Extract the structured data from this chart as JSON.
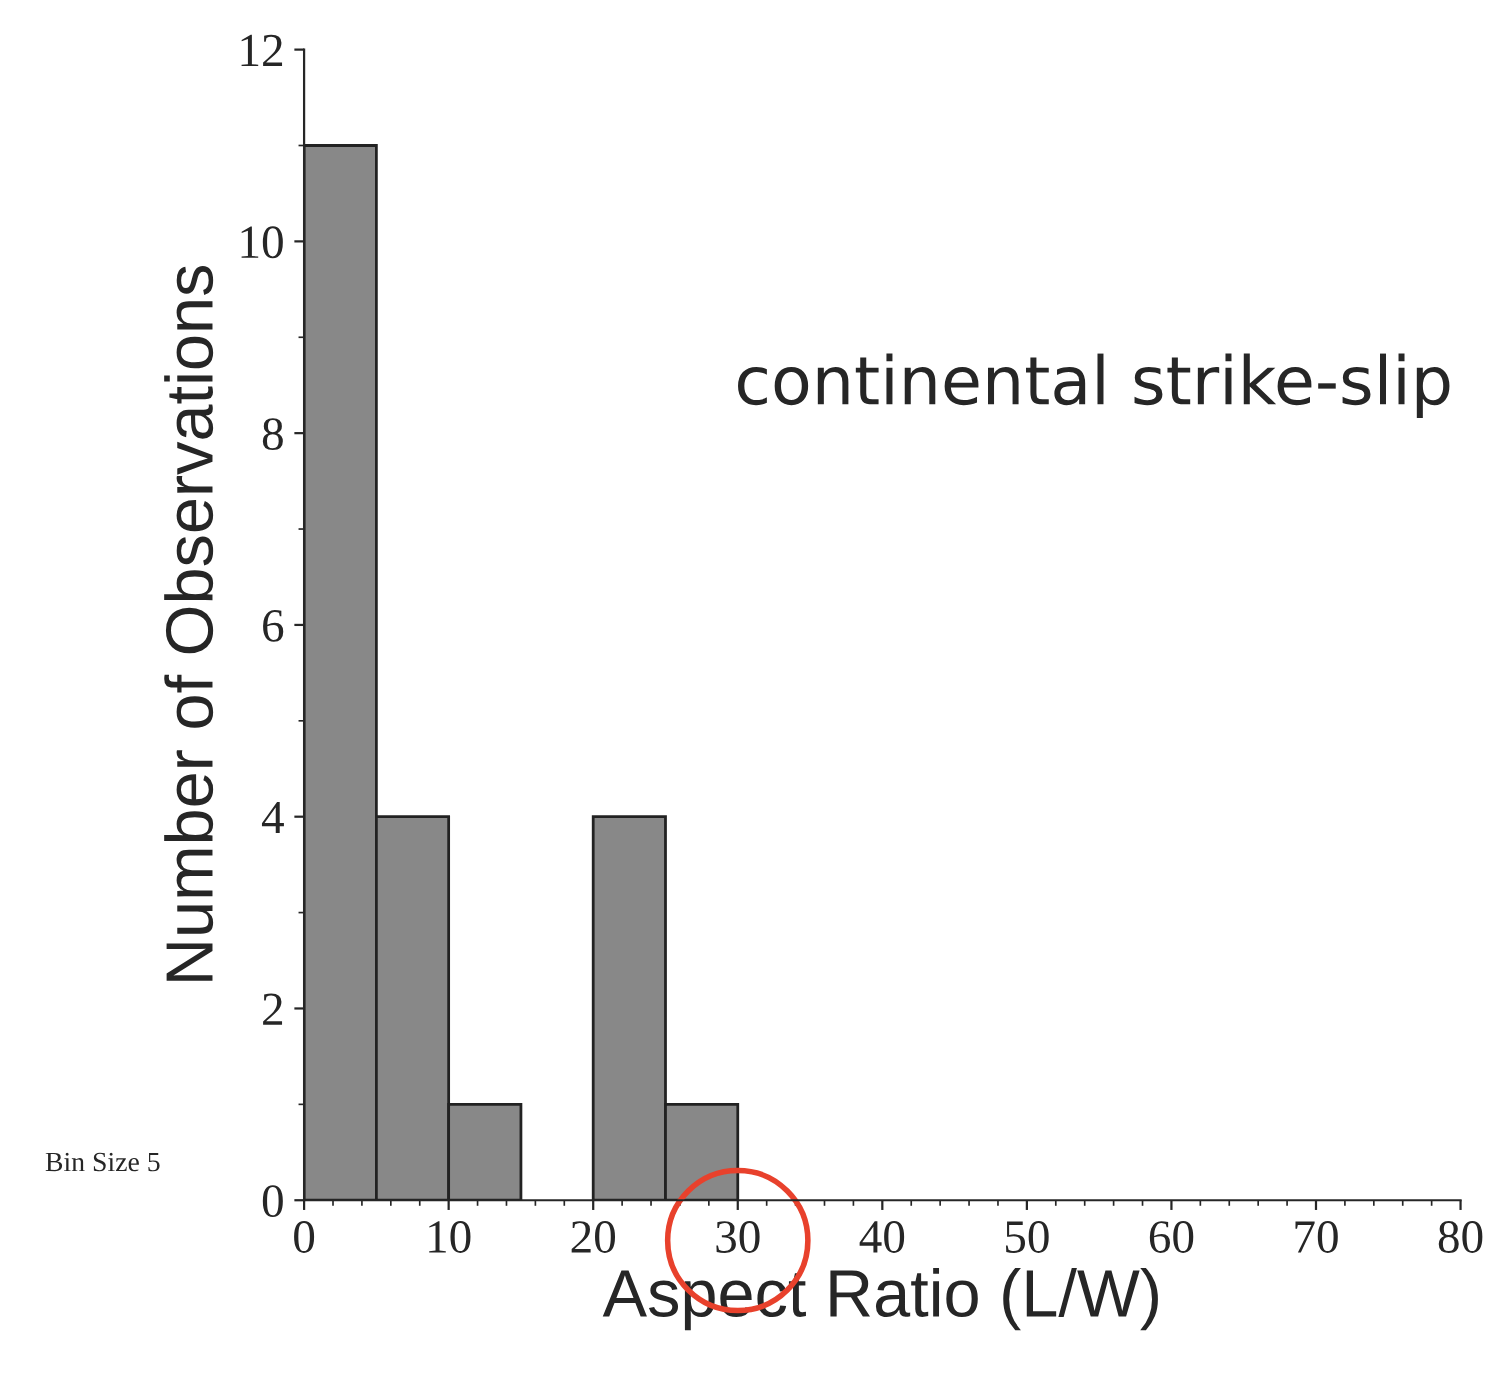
{
  "chart_data": {
    "type": "histogram",
    "xlabel": "Aspect Ratio (L/W)",
    "ylabel": "Number of Observations",
    "bins": [
      0,
      5,
      10,
      15,
      20,
      25,
      30,
      35,
      40,
      45,
      50,
      55,
      60,
      65,
      70,
      75,
      80
    ],
    "values": [
      11,
      4,
      1,
      0,
      4,
      1,
      0,
      0,
      0,
      0,
      0,
      0,
      0,
      0,
      0,
      0
    ],
    "color": "#888888",
    "xlim": [
      0,
      80
    ],
    "xticks": [
      0,
      10,
      20,
      30,
      40,
      50,
      60,
      70,
      80
    ],
    "ylim": [
      0,
      12
    ],
    "yticks": [
      0,
      2,
      4,
      6,
      8,
      10,
      12
    ],
    "grid": false,
    "annotations": [
      "continental strike-slip",
      "Bin Size 5"
    ]
  }
}
